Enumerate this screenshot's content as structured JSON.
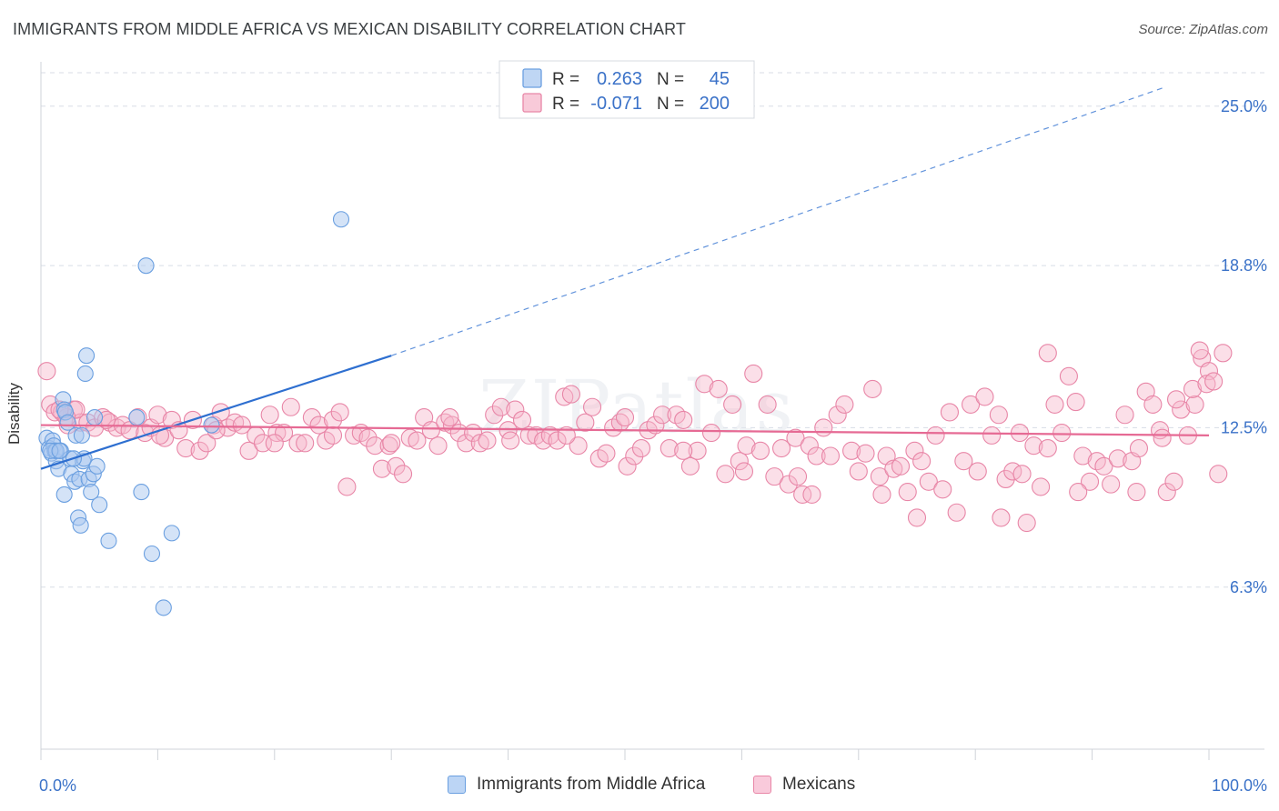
{
  "title": "IMMIGRANTS FROM MIDDLE AFRICA VS MEXICAN DISABILITY CORRELATION CHART",
  "source": "Source: ZipAtlas.com",
  "watermark": "ZIPatlas",
  "colors": {
    "blue_fill": "#a9c8f0",
    "blue_stroke": "#6a9fe0",
    "blue_line": "#2e6fd0",
    "pink_fill": "#f6b8cc",
    "pink_stroke": "#e886a7",
    "pink_line": "#e66a94",
    "tick_label": "#3b72c8"
  },
  "legend_top": {
    "rows": [
      {
        "r_label": "R =",
        "r_value": "0.263",
        "n_label": "N =",
        "n_value": "45"
      },
      {
        "r_label": "R =",
        "r_value": "-0.071",
        "n_label": "N =",
        "n_value": "200"
      }
    ]
  },
  "legend_bottom": {
    "items": [
      {
        "label": "Immigrants from Middle Africa"
      },
      {
        "label": "Mexicans"
      }
    ]
  },
  "chart_data": {
    "type": "scatter",
    "title": "IMMIGRANTS FROM MIDDLE AFRICA VS MEXICAN DISABILITY CORRELATION CHART",
    "xlabel": "",
    "ylabel": "Disability",
    "xlim": [
      0,
      100
    ],
    "ylim": [
      0,
      26.3
    ],
    "x_tick_labels": [
      "0.0%",
      "100.0%"
    ],
    "y_ticks": [
      6.3,
      12.5,
      18.8,
      25.0
    ],
    "y_tick_labels": [
      "6.3%",
      "12.5%",
      "18.8%",
      "25.0%"
    ],
    "grid": true,
    "legend_position": "top-center",
    "series": [
      {
        "name": "Immigrants from Middle Africa",
        "r": 0.263,
        "n": 45,
        "trend": {
          "x": [
            0,
            30
          ],
          "y": [
            10.9,
            15.3
          ],
          "dashed_to": [
            96,
            25.7
          ]
        },
        "points": [
          [
            0.5,
            12.1
          ],
          [
            0.7,
            11.7
          ],
          [
            0.9,
            11.5
          ],
          [
            1.0,
            12.0
          ],
          [
            1.1,
            11.8
          ],
          [
            1.2,
            11.6
          ],
          [
            1.3,
            11.2
          ],
          [
            1.5,
            10.9
          ],
          [
            1.7,
            11.6
          ],
          [
            1.9,
            13.6
          ],
          [
            2.0,
            13.2
          ],
          [
            2.1,
            13.1
          ],
          [
            2.0,
            9.9
          ],
          [
            2.3,
            12.7
          ],
          [
            2.5,
            11.3
          ],
          [
            2.6,
            10.7
          ],
          [
            2.9,
            10.4
          ],
          [
            3.0,
            12.2
          ],
          [
            3.2,
            9.0
          ],
          [
            3.3,
            10.5
          ],
          [
            3.4,
            8.7
          ],
          [
            3.5,
            12.2
          ],
          [
            3.6,
            11.2
          ],
          [
            3.7,
            11.3
          ],
          [
            3.8,
            14.6
          ],
          [
            3.9,
            15.3
          ],
          [
            4.1,
            10.5
          ],
          [
            4.3,
            10.0
          ],
          [
            4.5,
            10.7
          ],
          [
            4.6,
            12.9
          ],
          [
            4.8,
            11.0
          ],
          [
            5.0,
            9.5
          ],
          [
            5.8,
            8.1
          ],
          [
            8.2,
            12.9
          ],
          [
            8.6,
            10.0
          ],
          [
            9.0,
            18.8
          ],
          [
            9.5,
            7.6
          ],
          [
            10.5,
            5.5
          ],
          [
            11.2,
            8.4
          ],
          [
            14.6,
            12.6
          ],
          [
            25.7,
            20.6
          ],
          [
            1.3,
            11.6
          ],
          [
            0.8,
            11.6
          ],
          [
            1.6,
            11.6
          ],
          [
            2.8,
            11.3
          ]
        ]
      },
      {
        "name": "Mexicans",
        "r": -0.071,
        "n": 200,
        "trend": {
          "x": [
            0,
            100
          ],
          "y": [
            12.6,
            12.2
          ]
        },
        "points": [
          [
            0.5,
            14.7
          ],
          [
            0.8,
            13.4
          ],
          [
            1.2,
            13.1
          ],
          [
            1.8,
            13.1
          ],
          [
            2.3,
            12.6
          ],
          [
            2.8,
            13.2
          ],
          [
            3.4,
            12.7
          ],
          [
            4.0,
            12.7
          ],
          [
            4.6,
            12.5
          ],
          [
            5.3,
            12.9
          ],
          [
            5.9,
            12.7
          ],
          [
            6.5,
            12.5
          ],
          [
            7.0,
            12.6
          ],
          [
            7.6,
            12.4
          ],
          [
            8.3,
            12.9
          ],
          [
            8.9,
            12.3
          ],
          [
            9.4,
            12.5
          ],
          [
            10.0,
            13.0
          ],
          [
            10.6,
            12.1
          ],
          [
            11.2,
            12.8
          ],
          [
            11.8,
            12.4
          ],
          [
            12.4,
            11.7
          ],
          [
            13.0,
            12.8
          ],
          [
            13.6,
            11.6
          ],
          [
            14.2,
            11.9
          ],
          [
            14.8,
            12.6
          ],
          [
            15.4,
            13.1
          ],
          [
            16.0,
            12.5
          ],
          [
            16.6,
            12.7
          ],
          [
            17.2,
            12.6
          ],
          [
            17.8,
            11.6
          ],
          [
            18.4,
            12.2
          ],
          [
            19.0,
            11.9
          ],
          [
            19.6,
            13.0
          ],
          [
            20.2,
            12.3
          ],
          [
            20.8,
            12.3
          ],
          [
            21.4,
            13.3
          ],
          [
            22.0,
            11.9
          ],
          [
            22.6,
            11.9
          ],
          [
            23.2,
            12.9
          ],
          [
            23.8,
            12.6
          ],
          [
            24.4,
            12.0
          ],
          [
            25.0,
            12.8
          ],
          [
            25.6,
            13.1
          ],
          [
            26.2,
            10.2
          ],
          [
            26.8,
            12.2
          ],
          [
            27.4,
            12.3
          ],
          [
            28.0,
            12.1
          ],
          [
            28.6,
            11.8
          ],
          [
            29.2,
            10.9
          ],
          [
            29.8,
            11.8
          ],
          [
            30.4,
            11.0
          ],
          [
            31.0,
            10.7
          ],
          [
            31.6,
            12.1
          ],
          [
            32.2,
            12.0
          ],
          [
            32.8,
            12.9
          ],
          [
            33.4,
            12.4
          ],
          [
            34.0,
            11.8
          ],
          [
            34.6,
            12.7
          ],
          [
            35.2,
            12.6
          ],
          [
            35.8,
            12.3
          ],
          [
            36.4,
            11.9
          ],
          [
            37.0,
            12.3
          ],
          [
            37.6,
            11.9
          ],
          [
            38.2,
            12.0
          ],
          [
            38.8,
            13.0
          ],
          [
            39.4,
            13.3
          ],
          [
            40.0,
            12.4
          ],
          [
            40.6,
            13.2
          ],
          [
            41.2,
            12.8
          ],
          [
            41.8,
            12.2
          ],
          [
            42.4,
            12.2
          ],
          [
            43.0,
            12.0
          ],
          [
            43.6,
            12.2
          ],
          [
            44.2,
            12.0
          ],
          [
            44.8,
            13.7
          ],
          [
            45.4,
            13.8
          ],
          [
            46.0,
            11.8
          ],
          [
            46.6,
            12.7
          ],
          [
            47.2,
            13.3
          ],
          [
            47.8,
            11.3
          ],
          [
            48.4,
            11.5
          ],
          [
            49.0,
            12.5
          ],
          [
            49.6,
            12.7
          ],
          [
            50.2,
            11.0
          ],
          [
            50.8,
            11.4
          ],
          [
            51.4,
            11.7
          ],
          [
            52.0,
            12.4
          ],
          [
            52.6,
            12.6
          ],
          [
            53.2,
            13.0
          ],
          [
            53.8,
            11.7
          ],
          [
            54.4,
            13.0
          ],
          [
            55.0,
            12.8
          ],
          [
            55.6,
            11.0
          ],
          [
            56.2,
            11.6
          ],
          [
            56.8,
            14.2
          ],
          [
            57.4,
            12.3
          ],
          [
            58.0,
            14.0
          ],
          [
            58.6,
            10.7
          ],
          [
            59.2,
            13.4
          ],
          [
            59.8,
            11.2
          ],
          [
            60.4,
            11.8
          ],
          [
            61.0,
            14.6
          ],
          [
            61.6,
            11.6
          ],
          [
            62.2,
            13.4
          ],
          [
            62.8,
            10.6
          ],
          [
            63.4,
            11.7
          ],
          [
            64.0,
            10.3
          ],
          [
            64.6,
            12.1
          ],
          [
            65.2,
            9.9
          ],
          [
            65.8,
            11.8
          ],
          [
            66.4,
            11.4
          ],
          [
            67.0,
            12.5
          ],
          [
            67.6,
            11.4
          ],
          [
            68.2,
            13.0
          ],
          [
            68.8,
            13.4
          ],
          [
            69.4,
            11.6
          ],
          [
            70.0,
            10.8
          ],
          [
            70.6,
            11.5
          ],
          [
            71.2,
            14.0
          ],
          [
            71.8,
            10.6
          ],
          [
            72.4,
            11.4
          ],
          [
            73.0,
            10.9
          ],
          [
            73.6,
            11.0
          ],
          [
            74.2,
            10.0
          ],
          [
            74.8,
            11.6
          ],
          [
            75.4,
            11.2
          ],
          [
            76.0,
            10.4
          ],
          [
            76.6,
            12.2
          ],
          [
            77.2,
            10.1
          ],
          [
            77.8,
            13.1
          ],
          [
            78.4,
            9.2
          ],
          [
            79.0,
            11.2
          ],
          [
            79.6,
            13.4
          ],
          [
            80.2,
            10.8
          ],
          [
            80.8,
            13.7
          ],
          [
            81.4,
            12.2
          ],
          [
            82.0,
            13.0
          ],
          [
            82.6,
            10.5
          ],
          [
            83.2,
            10.8
          ],
          [
            83.8,
            12.3
          ],
          [
            84.4,
            8.8
          ],
          [
            85.0,
            11.8
          ],
          [
            85.6,
            10.2
          ],
          [
            86.2,
            11.7
          ],
          [
            86.8,
            13.4
          ],
          [
            87.4,
            12.3
          ],
          [
            88.0,
            14.5
          ],
          [
            88.6,
            13.5
          ],
          [
            89.2,
            11.4
          ],
          [
            89.8,
            10.4
          ],
          [
            90.4,
            11.2
          ],
          [
            91.0,
            11.0
          ],
          [
            91.6,
            10.3
          ],
          [
            92.2,
            11.3
          ],
          [
            92.8,
            13.0
          ],
          [
            93.4,
            11.2
          ],
          [
            94.0,
            11.7
          ],
          [
            94.6,
            13.9
          ],
          [
            95.2,
            13.4
          ],
          [
            95.8,
            12.4
          ],
          [
            96.4,
            10.0
          ],
          [
            97.0,
            10.4
          ],
          [
            97.6,
            13.2
          ],
          [
            98.2,
            12.2
          ],
          [
            98.8,
            13.4
          ],
          [
            99.4,
            15.2
          ],
          [
            100.0,
            14.7
          ],
          [
            98.6,
            14.0
          ],
          [
            99.2,
            15.5
          ],
          [
            99.8,
            14.2
          ],
          [
            100.4,
            14.3
          ],
          [
            100.8,
            10.7
          ],
          [
            101.2,
            15.4
          ],
          [
            97.2,
            13.6
          ],
          [
            96.0,
            12.1
          ],
          [
            93.8,
            10.0
          ],
          [
            88.8,
            10.0
          ],
          [
            86.2,
            15.4
          ],
          [
            84.0,
            10.7
          ],
          [
            82.2,
            9.0
          ],
          [
            75.0,
            9.0
          ],
          [
            72.0,
            9.9
          ],
          [
            66.0,
            9.9
          ],
          [
            64.8,
            10.6
          ],
          [
            60.2,
            10.8
          ],
          [
            55.0,
            11.6
          ],
          [
            50.0,
            12.9
          ],
          [
            45.0,
            12.2
          ],
          [
            40.2,
            12.0
          ],
          [
            35.0,
            12.9
          ],
          [
            30.0,
            11.9
          ],
          [
            25.0,
            12.2
          ],
          [
            20.0,
            11.9
          ],
          [
            15.0,
            12.4
          ],
          [
            10.2,
            12.2
          ],
          [
            5.6,
            12.8
          ],
          [
            3.0,
            13.2
          ],
          [
            2.2,
            12.9
          ],
          [
            1.6,
            13.2
          ]
        ]
      }
    ]
  }
}
